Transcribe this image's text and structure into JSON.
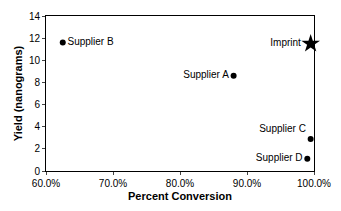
{
  "chart_data": {
    "type": "scatter",
    "x_label": "Percent Conversion",
    "y_label": "Yield (nanograms)",
    "xlim": [
      60,
      100
    ],
    "xticks": [
      {
        "value": 60,
        "label": "60.0%"
      },
      {
        "value": 70,
        "label": "70.0%"
      },
      {
        "value": 80,
        "label": "80.0%"
      },
      {
        "value": 90,
        "label": "90.0%"
      },
      {
        "value": 100,
        "label": "100.0%"
      }
    ],
    "ylim": [
      0,
      14
    ],
    "yticks": [
      0,
      2,
      4,
      6,
      8,
      10,
      12,
      14
    ],
    "grid": false,
    "series": [
      {
        "marker": "circle",
        "color": "#000000",
        "x": [
          62.5,
          88.0,
          99.5,
          99.0
        ],
        "values": [
          11.6,
          8.6,
          2.9,
          1.1
        ],
        "annotations": [
          "Supplier B",
          "Supplier A",
          "Supplier C",
          "Supplier D"
        ]
      },
      {
        "marker": "star",
        "color": "#000000",
        "x": [
          99.5
        ],
        "values": [
          11.5
        ],
        "annotations": [
          "Imprint"
        ]
      }
    ]
  }
}
